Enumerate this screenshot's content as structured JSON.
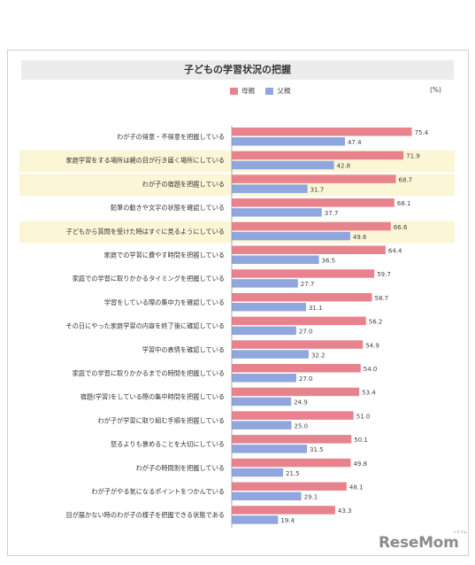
{
  "chart_data": {
    "type": "bar",
    "title": "子どもの学習状況の把握",
    "unit": "(%)",
    "categories": [
      "わが子の得意・不得意を把握している",
      "家庭学習をする場所は親の目が行き届く場所にしている",
      "わが子の宿題を把握している",
      "鉛筆の動きや文字の状態を確認している",
      "子どもから質問を受けた時はすぐに見るようにしている",
      "家庭での学習に費やす時間を把握している",
      "家庭での学習に取りかかるタイミングを把握している",
      "学習をしている際の集中力を確認している",
      "その日にやった家庭学習の内容を終了後に確認している",
      "学習中の表情を確認している",
      "家庭での学習に取りかかるまでの時間を把握している",
      "宿題(学習)をしている際の集中時間を把握している",
      "わが子が学習に取り組む手順を把握している",
      "怒るよりも褒めることを大切にしている",
      "わが子の時間割を把握している",
      "わが子がやる気になるポイントをつかんでいる",
      "目が届かない時のわが子の様子を把握できる状態である"
    ],
    "series": [
      {
        "name": "母親",
        "color": "#e8838e",
        "values": [
          75.4,
          71.9,
          68.7,
          68.1,
          66.6,
          64.4,
          59.7,
          58.7,
          56.2,
          54.9,
          54.0,
          53.4,
          51.0,
          50.1,
          49.8,
          48.1,
          43.3
        ]
      },
      {
        "name": "父親",
        "color": "#8fa6de",
        "values": [
          47.4,
          42.8,
          31.7,
          37.7,
          49.6,
          36.5,
          27.7,
          31.1,
          27.0,
          32.2,
          27.0,
          24.9,
          25.0,
          31.5,
          21.5,
          29.1,
          19.4
        ]
      }
    ],
    "highlighted_rows": [
      1,
      2,
      4
    ],
    "highlight_color": "#fbf6d6",
    "xlim": [
      0,
      100
    ],
    "grid": false,
    "legend_position": "top"
  },
  "watermark": "ReseMom",
  "watermark_sup": "リセマム"
}
